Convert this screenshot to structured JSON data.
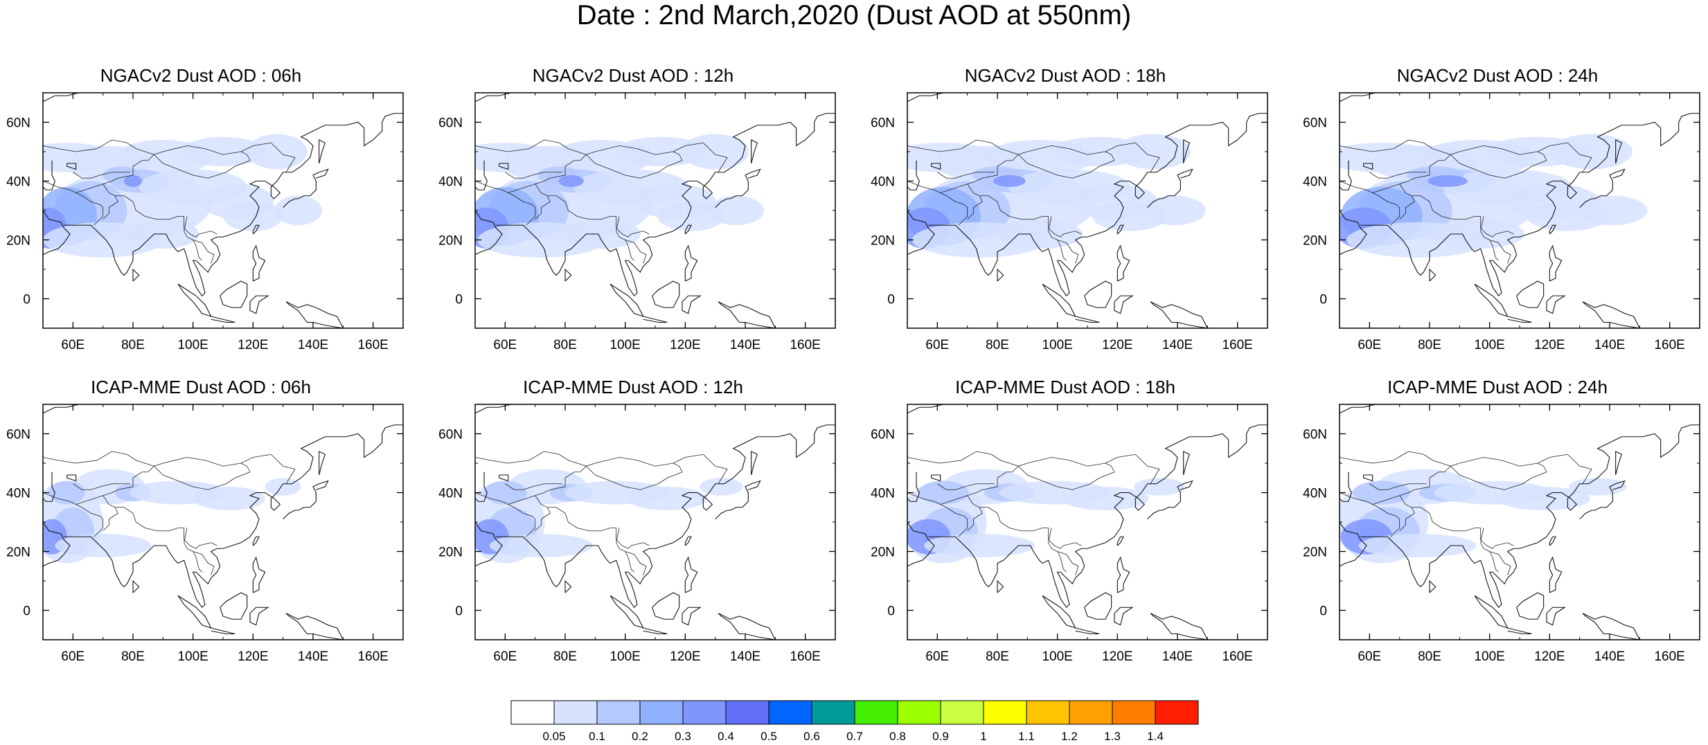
{
  "title": "Date : 2nd March,2020 (Dust AOD at 550nm)",
  "map": {
    "lon_range": [
      50,
      170
    ],
    "lat_range": [
      -10,
      70
    ],
    "x_ticks": [
      "60E",
      "80E",
      "100E",
      "120E",
      "140E",
      "160E"
    ],
    "x_tick_values": [
      60,
      80,
      100,
      120,
      140,
      160
    ],
    "y_ticks": [
      "0",
      "20N",
      "40N",
      "60N"
    ],
    "y_tick_values": [
      0,
      20,
      40,
      60
    ]
  },
  "panels": [
    {
      "title": "NGACv2 Dust AOD : 06h",
      "model": "NGACv2",
      "hour": 6
    },
    {
      "title": "NGACv2 Dust AOD : 12h",
      "model": "NGACv2",
      "hour": 12
    },
    {
      "title": "NGACv2 Dust AOD : 18h",
      "model": "NGACv2",
      "hour": 18
    },
    {
      "title": "NGACv2 Dust AOD : 24h",
      "model": "NGACv2",
      "hour": 24
    },
    {
      "title": "ICAP-MME Dust AOD : 06h",
      "model": "ICAP-MME",
      "hour": 6
    },
    {
      "title": "ICAP-MME Dust AOD : 12h",
      "model": "ICAP-MME",
      "hour": 12
    },
    {
      "title": "ICAP-MME Dust AOD : 18h",
      "model": "ICAP-MME",
      "hour": 18
    },
    {
      "title": "ICAP-MME Dust AOD : 24h",
      "model": "ICAP-MME",
      "hour": 24
    }
  ],
  "colorbar": {
    "labels": [
      "0.05",
      "0.1",
      "0.2",
      "0.3",
      "0.4",
      "0.5",
      "0.6",
      "0.7",
      "0.8",
      "0.9",
      "1",
      "1.1",
      "1.2",
      "1.3",
      "1.4"
    ],
    "colors": [
      "#ffffff",
      "#d6e2ff",
      "#b5c9ff",
      "#8fb1ff",
      "#7f96ff",
      "#6370f8",
      "#0066ff",
      "#009a9a",
      "#44f000",
      "#9cff00",
      "#c9ff40",
      "#ffff00",
      "#ffc400",
      "#ffa000",
      "#ff7d00",
      "#ff1e00"
    ]
  }
}
